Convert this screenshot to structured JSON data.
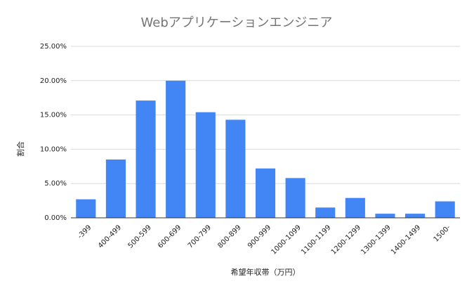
{
  "chart_data": {
    "type": "bar",
    "title": "Webアプリケーションエンジニア",
    "x_label": "希望年収帯（万円）",
    "y_label": "割合",
    "categories": [
      "-399",
      "400-499",
      "500-599",
      "600-699",
      "700-799",
      "800-899",
      "900-999",
      "1000-1099",
      "1100-1199",
      "1200-1299",
      "1300-1399",
      "1400-1499",
      "1500-"
    ],
    "values": [
      2.7,
      8.5,
      17.1,
      20.0,
      15.4,
      14.3,
      7.2,
      5.8,
      1.5,
      2.9,
      0.6,
      0.6,
      2.4
    ],
    "color": "#4285f4",
    "ylim": [
      0,
      25
    ],
    "yticks": [
      {
        "value": 0,
        "label": "0.00%"
      },
      {
        "value": 5,
        "label": "5.00%"
      },
      {
        "value": 10,
        "label": "10.00%"
      },
      {
        "value": 15,
        "label": "15.00%"
      },
      {
        "value": 20,
        "label": "20.00%"
      },
      {
        "value": 25,
        "label": "25.00%"
      }
    ],
    "grid": true
  }
}
